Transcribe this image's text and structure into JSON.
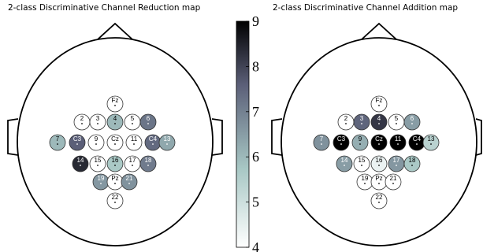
{
  "maps": [
    {
      "title": "2-class Discriminative Channel Reduction map",
      "electrodes": [
        {
          "label": "Fz",
          "value": 4.0
        },
        {
          "label": "2",
          "value": 4.0
        },
        {
          "label": "3",
          "value": 4.0
        },
        {
          "label": "4",
          "value": 6.0
        },
        {
          "label": "5",
          "value": 4.0
        },
        {
          "label": "6",
          "value": 7.2
        },
        {
          "label": "7",
          "value": 6.0
        },
        {
          "label": "C3",
          "value": 7.6
        },
        {
          "label": "9",
          "value": 4.0
        },
        {
          "label": "Cz",
          "value": 4.0
        },
        {
          "label": "11",
          "value": 4.0
        },
        {
          "label": "C4",
          "value": 7.4
        },
        {
          "label": "13",
          "value": 6.3
        },
        {
          "label": "14",
          "value": 8.4
        },
        {
          "label": "15",
          "value": 4.0
        },
        {
          "label": "16",
          "value": 5.7
        },
        {
          "label": "17",
          "value": 4.0
        },
        {
          "label": "18",
          "value": 7.1
        },
        {
          "label": "19",
          "value": 6.6
        },
        {
          "label": "Pz",
          "value": 4.0
        },
        {
          "label": "21",
          "value": 6.7
        },
        {
          "label": "22",
          "value": 4.0
        }
      ]
    },
    {
      "title": "2-class Discriminative Channel Addition map",
      "electrodes": [
        {
          "label": "Fz",
          "value": 4.0
        },
        {
          "label": "2",
          "value": 4.0
        },
        {
          "label": "3",
          "value": 7.5
        },
        {
          "label": "4",
          "value": 8.2
        },
        {
          "label": "5",
          "value": 4.0
        },
        {
          "label": "6",
          "value": 6.5
        },
        {
          "label": "7",
          "value": 6.7
        },
        {
          "label": "C3",
          "value": 9.0
        },
        {
          "label": "9",
          "value": 6.2
        },
        {
          "label": "Cz",
          "value": 9.0
        },
        {
          "label": "11",
          "value": 9.0
        },
        {
          "label": "C4",
          "value": 9.0
        },
        {
          "label": "13",
          "value": 5.4
        },
        {
          "label": "14",
          "value": 6.5
        },
        {
          "label": "15",
          "value": 4.0
        },
        {
          "label": "16",
          "value": 4.4
        },
        {
          "label": "17",
          "value": 6.6
        },
        {
          "label": "18",
          "value": 5.7
        },
        {
          "label": "19",
          "value": 4.0
        },
        {
          "label": "Pz",
          "value": 4.0
        },
        {
          "label": "21",
          "value": 4.0
        },
        {
          "label": "22",
          "value": 4.0
        }
      ]
    }
  ],
  "colorbar": {
    "min": 4,
    "max": 9,
    "ticks": [
      "4",
      "5",
      "6",
      "7",
      "8",
      "9"
    ],
    "colors": [
      "#ffffff",
      "#a7c7c4",
      "#5b5f78",
      "#000000"
    ]
  }
}
